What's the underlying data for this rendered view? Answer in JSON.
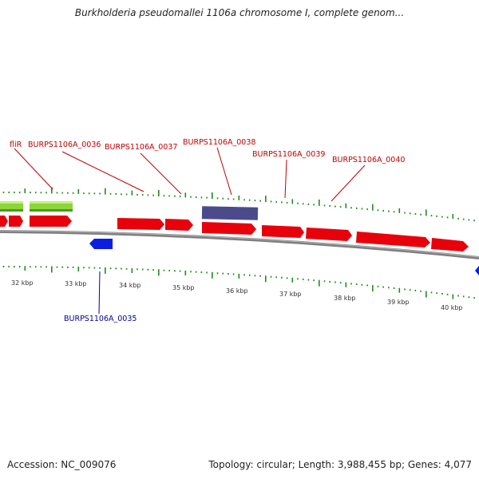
{
  "title": "Burkholderia pseudomallei 1106a chromosome I, complete genom...",
  "footer": {
    "accession": "Accession: NC_009076",
    "summary": "Topology: circular; Length: 3,988,455 bp; Genes: 4,077"
  },
  "colors": {
    "forward_gene": "#e8000b",
    "reverse_gene": "#0a1ee6",
    "highlight": "#4b4b8c",
    "feature_green": "#8ad63b",
    "tick": "#1e8c1e",
    "label_red": "#c00000",
    "label_blue": "#0000a0",
    "backbone": "#7f7f7f"
  },
  "genes_labeled": [
    {
      "name": "fliR",
      "color": "red"
    },
    {
      "name": "BURPS1106A_0036",
      "color": "red"
    },
    {
      "name": "BURPS1106A_0037",
      "color": "red"
    },
    {
      "name": "BURPS1106A_0038",
      "color": "red"
    },
    {
      "name": "BURPS1106A_0039",
      "color": "red"
    },
    {
      "name": "BURPS1106A_0040",
      "color": "red"
    },
    {
      "name": "BURPS1106A_0035",
      "color": "blue"
    }
  ],
  "position_ticks": [
    "32 kbp",
    "33 kbp",
    "34 kbp",
    "35 kbp",
    "36 kbp",
    "37 kbp",
    "38 kbp",
    "39 kbp",
    "40 kbp"
  ]
}
